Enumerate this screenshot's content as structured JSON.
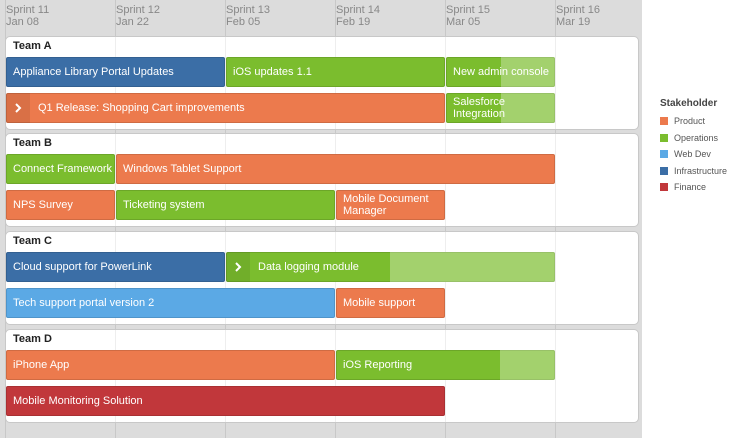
{
  "sprints": [
    {
      "name": "Sprint 11",
      "date": "Jan 08"
    },
    {
      "name": "Sprint 12",
      "date": "Jan 22"
    },
    {
      "name": "Sprint 13",
      "date": "Feb 05"
    },
    {
      "name": "Sprint 14",
      "date": "Feb 19"
    },
    {
      "name": "Sprint 15",
      "date": "Mar 05"
    },
    {
      "name": "Sprint 16",
      "date": "Mar 19"
    }
  ],
  "teams": [
    {
      "name": "Team A",
      "rows": [
        [
          "Appliance Library Portal Updates",
          "iOS updates 1.1",
          "New admin console"
        ],
        [
          "Q1 Release: Shopping Cart improvements",
          "Salesforce Integration"
        ]
      ]
    },
    {
      "name": "Team B",
      "rows": [
        [
          "Connect Framework",
          "Windows Tablet Support"
        ],
        [
          "NPS Survey",
          "Ticketing system",
          "Mobile Document Manager"
        ]
      ]
    },
    {
      "name": "Team C",
      "rows": [
        [
          "Cloud support for PowerLink",
          "Data logging module"
        ],
        [
          "Tech support portal version 2",
          "Mobile support"
        ]
      ]
    },
    {
      "name": "Team D",
      "rows": [
        [
          "iPhone App",
          "iOS Reporting"
        ],
        [
          "Mobile Monitoring Solution"
        ]
      ]
    }
  ],
  "legend": {
    "title": "Stakeholder",
    "items": [
      {
        "name": "Product",
        "color": "#ec7a4d"
      },
      {
        "name": "Operations",
        "color": "#7bbd2e"
      },
      {
        "name": "Web Dev",
        "color": "#5ba9e5"
      },
      {
        "name": "Infrastructure",
        "color": "#3b6ea6"
      },
      {
        "name": "Finance",
        "color": "#c1373b"
      }
    ]
  }
}
